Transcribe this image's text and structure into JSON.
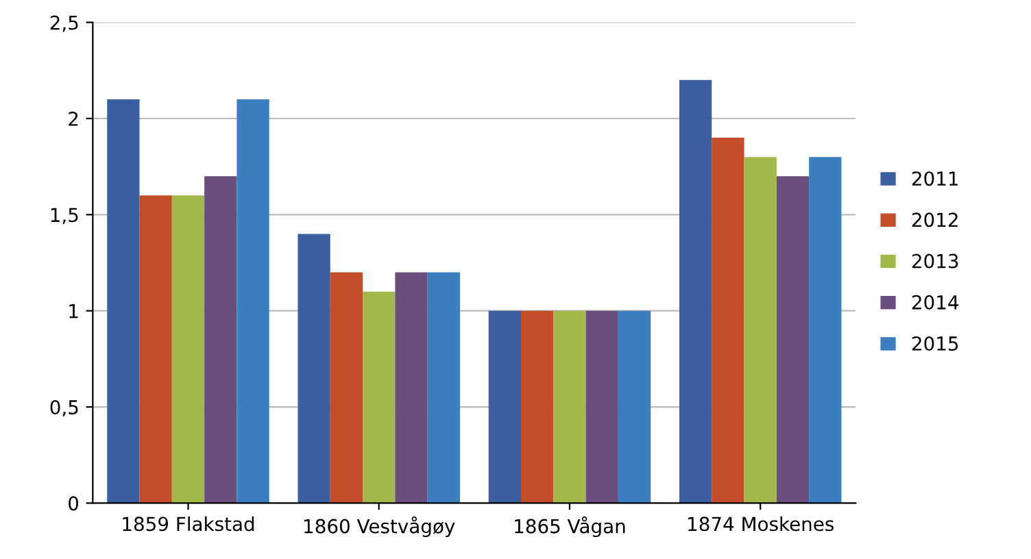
{
  "chart_data": {
    "type": "bar",
    "categories": [
      "1859 Flakstad",
      "1860 Vestvågøy",
      "1865 Vågan",
      "1874 Moskenes"
    ],
    "series": [
      {
        "name": "2011",
        "color": "#3b5fa0",
        "values": [
          2.1,
          1.4,
          1.0,
          2.2
        ]
      },
      {
        "name": "2012",
        "color": "#c24d28",
        "values": [
          1.6,
          1.2,
          1.0,
          1.9
        ]
      },
      {
        "name": "2013",
        "color": "#a3b84a",
        "values": [
          1.6,
          1.1,
          1.0,
          1.8
        ]
      },
      {
        "name": "2014",
        "color": "#6a4f7e",
        "values": [
          1.7,
          1.2,
          1.0,
          1.7
        ]
      },
      {
        "name": "2015",
        "color": "#3b7fc0",
        "values": [
          2.1,
          1.2,
          1.0,
          1.8
        ]
      }
    ],
    "ylim": [
      0,
      2.5
    ],
    "yticks": [
      {
        "value": 0,
        "label": "0"
      },
      {
        "value": 0.5,
        "label": "0,5"
      },
      {
        "value": 1,
        "label": "1"
      },
      {
        "value": 1.5,
        "label": "1,5"
      },
      {
        "value": 2,
        "label": "2"
      },
      {
        "value": 2.5,
        "label": "2,5"
      }
    ],
    "grid": "y",
    "legend": "right"
  }
}
